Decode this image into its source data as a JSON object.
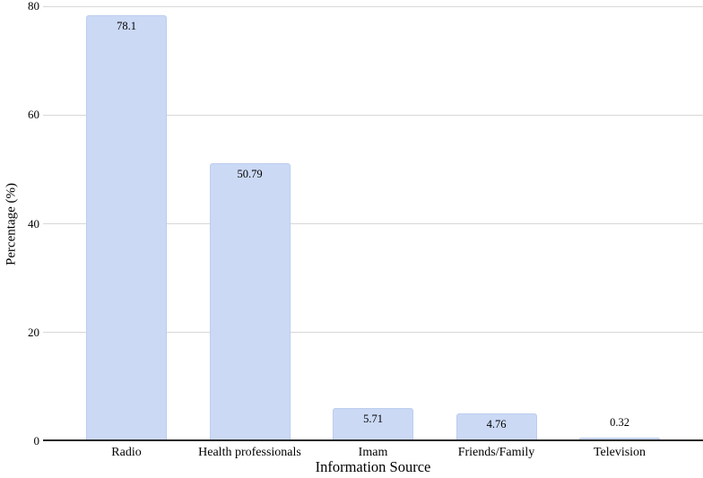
{
  "chart_data": {
    "type": "bar",
    "title": "",
    "categories": [
      "Radio",
      "Health professionals",
      "Imam",
      "Friends/Family",
      "Television"
    ],
    "values": [
      78.1,
      50.79,
      5.71,
      4.76,
      0.32
    ],
    "value_labels": [
      "78.1",
      "50.79",
      "5.71",
      "4.76",
      "0.32"
    ],
    "xlabel": "Information Source",
    "ylabel": "Percentage (%)",
    "ylim": [
      0,
      80
    ],
    "yticks": [
      0,
      20,
      40,
      60,
      80
    ],
    "grid": "horizontal",
    "legend": "none",
    "colors": {
      "bar_fill": "#cbd9f5",
      "bar_border": "#bccdee",
      "gridline": "#d8d8d8",
      "axis_line": "#2a2a2a",
      "text": "#000000",
      "background": "#ffffff"
    }
  }
}
